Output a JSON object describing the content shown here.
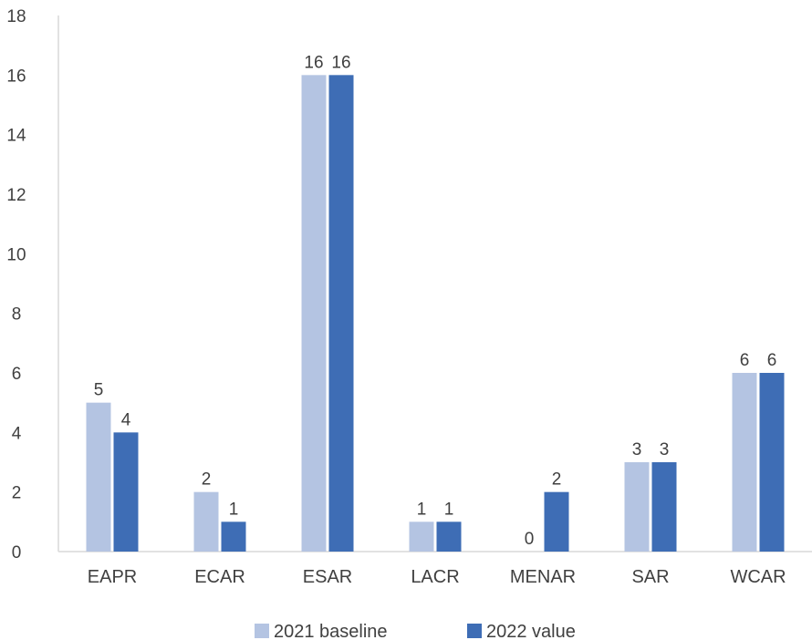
{
  "chart_data": {
    "type": "bar",
    "categories": [
      "EAPR",
      "ECAR",
      "ESAR",
      "LACR",
      "MENAR",
      "SAR",
      "WCAR"
    ],
    "series": [
      {
        "name": "2021 baseline",
        "values": [
          5,
          2,
          16,
          1,
          0,
          3,
          6
        ],
        "color": "#b4c4e2"
      },
      {
        "name": "2022 value",
        "values": [
          4,
          1,
          16,
          1,
          2,
          3,
          6
        ],
        "color": "#3e6db5"
      }
    ],
    "y_ticks": [
      0,
      2,
      4,
      6,
      8,
      10,
      12,
      14,
      16,
      18
    ],
    "ylim": [
      0,
      18
    ],
    "grid": false,
    "legend": "bottom-center",
    "data_labels": true,
    "axis_color": "#d9d9d9",
    "text_color": "#404040"
  }
}
